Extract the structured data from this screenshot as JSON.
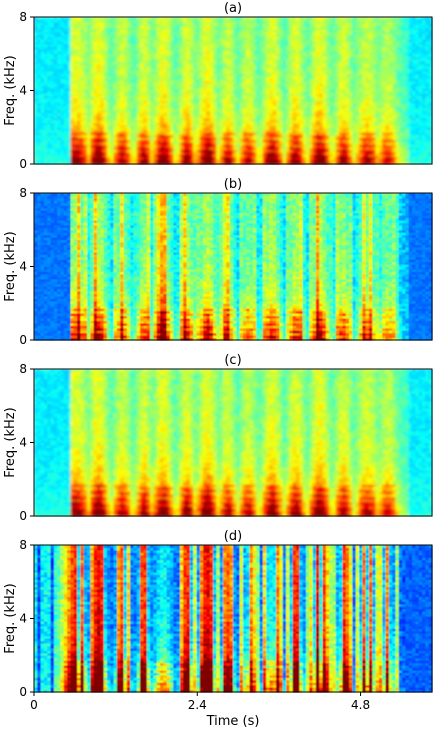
{
  "chart_data": [
    {
      "type": "heatmap",
      "title": "(a)",
      "ylabel": "Freq. (kHz)",
      "xlabel": "",
      "xlim": [
        0,
        5.85
      ],
      "ylim": [
        0,
        8
      ],
      "yticks": [
        "0",
        "4",
        "8"
      ],
      "xticks": [],
      "colormap": "jet",
      "texture": "smooth",
      "speech_start_s": 0.55,
      "speech_end_s": 5.5,
      "low_band_kHz": 1.5
    },
    {
      "type": "heatmap",
      "title": "(b)",
      "ylabel": "Freq. (kHz)",
      "xlabel": "",
      "xlim": [
        0,
        5.85
      ],
      "ylim": [
        0,
        8
      ],
      "yticks": [
        "0",
        "4",
        "8"
      ],
      "xticks": [],
      "colormap": "jet",
      "texture": "striated",
      "speech_start_s": 0.55,
      "speech_end_s": 5.5,
      "low_band_kHz": 1.5
    },
    {
      "type": "heatmap",
      "title": "(c)",
      "ylabel": "Freq. (kHz)",
      "xlabel": "",
      "xlim": [
        0,
        5.85
      ],
      "ylim": [
        0,
        8
      ],
      "yticks": [
        "0",
        "4",
        "8"
      ],
      "xticks": [],
      "colormap": "jet",
      "texture": "smooth",
      "speech_start_s": 0.55,
      "speech_end_s": 5.5,
      "low_band_kHz": 1.5
    },
    {
      "type": "heatmap",
      "title": "(d)",
      "ylabel": "Freq. (kHz)",
      "xlabel": "Time (s)",
      "xlim": [
        0,
        5.85
      ],
      "ylim": [
        0,
        8
      ],
      "yticks": [
        "0",
        "4",
        "8"
      ],
      "xticks": [
        "0",
        "2.4",
        "4.8"
      ],
      "colormap": "jet",
      "texture": "contrast",
      "speech_start_s": 0.0,
      "speech_end_s": 5.45,
      "low_band_kHz": 1.5
    }
  ]
}
